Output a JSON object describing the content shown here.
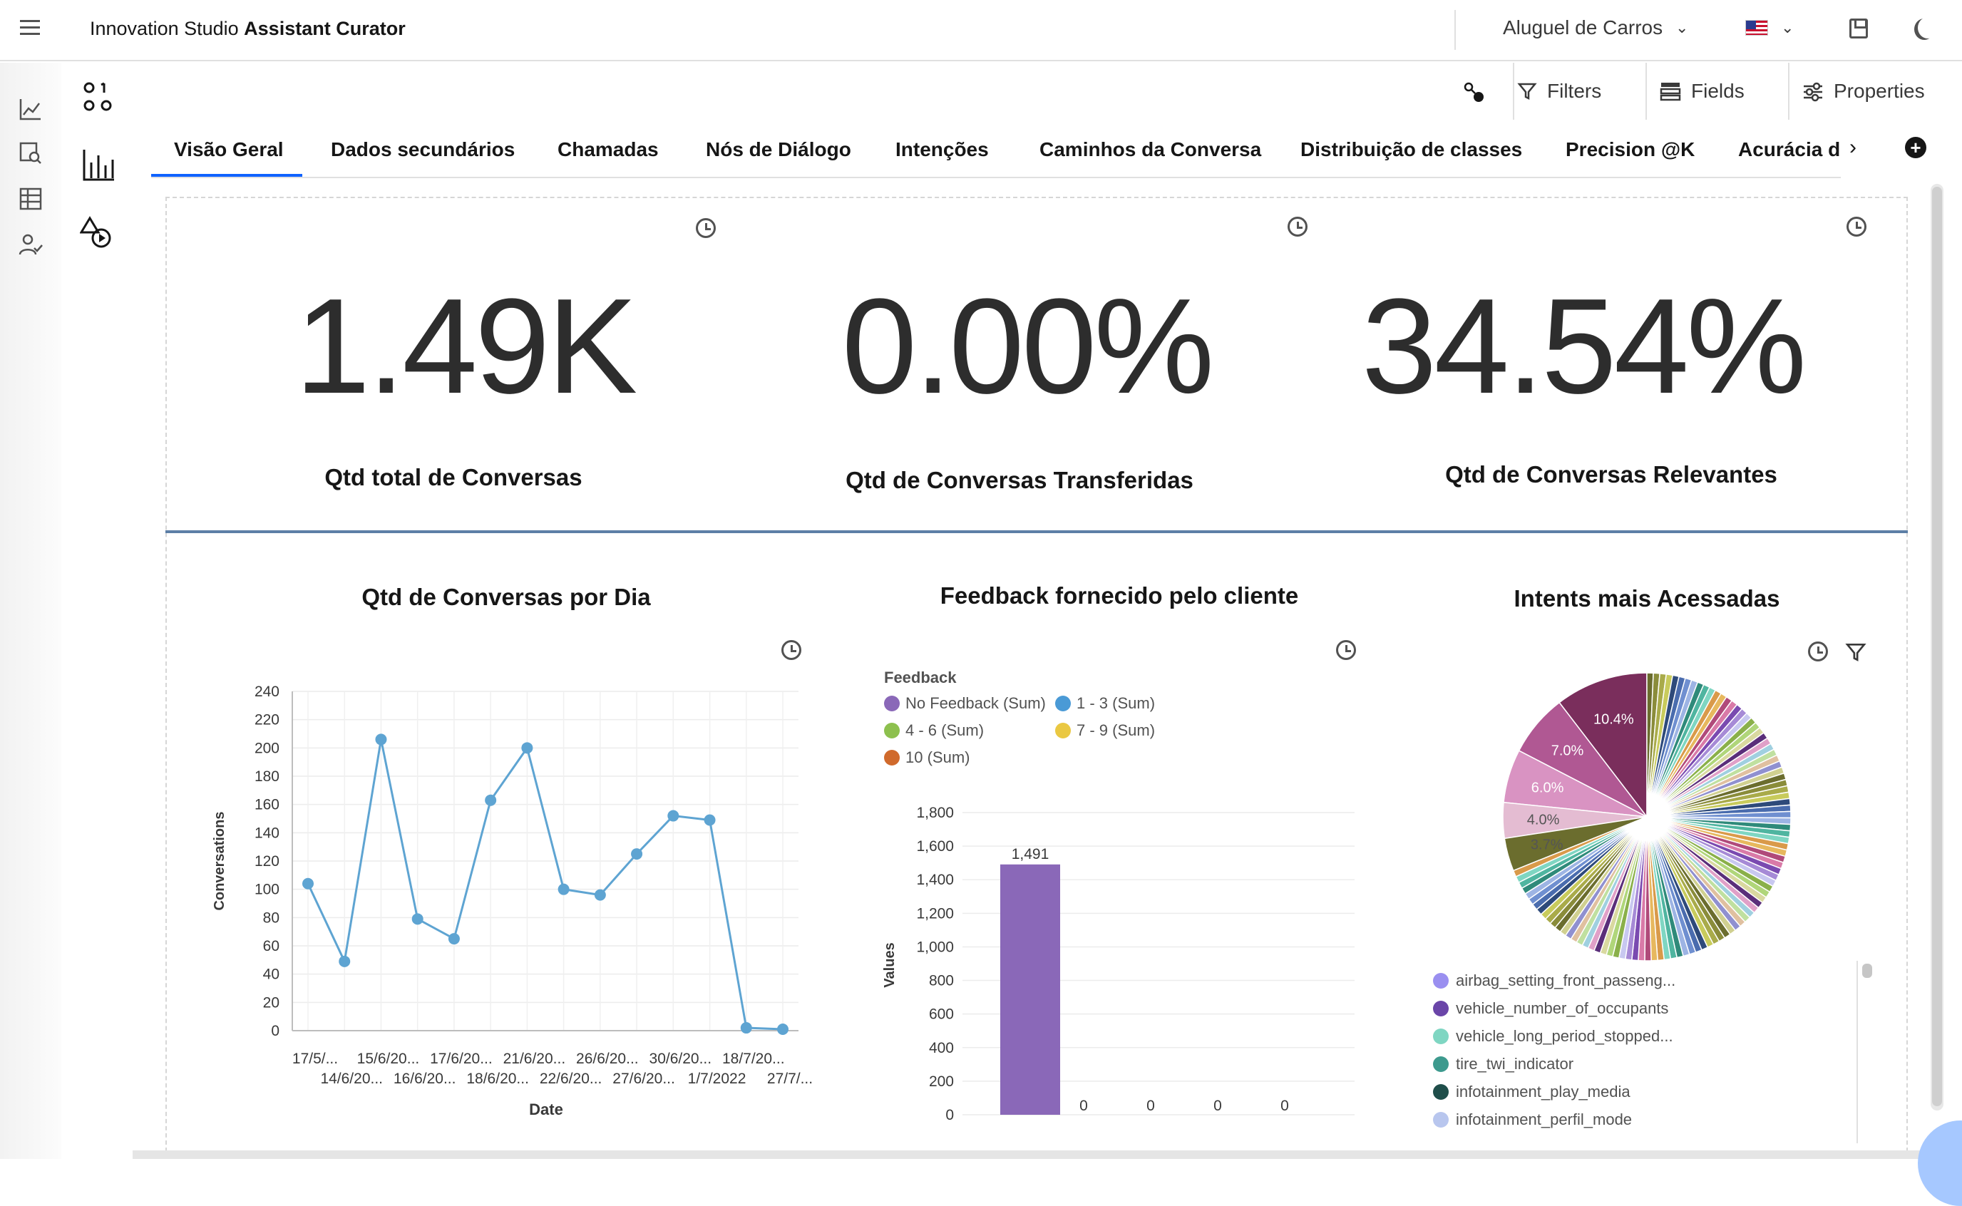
{
  "header": {
    "brand_prefix": "Innovation Studio ",
    "brand_bold": "Assistant Curator",
    "project": "Aluguel de Carros"
  },
  "toolbar": {
    "filters": "Filters",
    "fields": "Fields",
    "properties": "Properties"
  },
  "tabs": [
    {
      "label": "Visão Geral"
    },
    {
      "label": "Dados secundários"
    },
    {
      "label": "Chamadas"
    },
    {
      "label": "Nós de Diálogo"
    },
    {
      "label": "Intenções"
    },
    {
      "label": "Caminhos da Conversa"
    },
    {
      "label": "Distribuição de classes"
    },
    {
      "label": "Precision @K"
    },
    {
      "label": "Acurácia da"
    }
  ],
  "kpis": [
    {
      "value": "1.49K",
      "label": "Qtd total de Conversas"
    },
    {
      "value": "0.00%",
      "label": "Qtd de Conversas Transferidas"
    },
    {
      "value": "34.54%",
      "label": "Qtd de Conversas Relevantes"
    }
  ],
  "colors": {
    "accent": "#0f62fe",
    "line": "#5ea4d2",
    "bar": "#8a68b8",
    "separator": "#5d7fa6"
  },
  "chart_data": [
    {
      "type": "line",
      "title": "Qtd de Conversas por Dia",
      "xlabel": "Date",
      "ylabel": "Conversations",
      "ylim": [
        0,
        240
      ],
      "yticks": [
        "0",
        "20",
        "40",
        "60",
        "80",
        "100",
        "120",
        "140",
        "160",
        "180",
        "200",
        "220",
        "240"
      ],
      "xtick_top": [
        "17/5/...",
        "15/6/20...",
        "17/6/20...",
        "21/6/20...",
        "26/6/20...",
        "30/6/20...",
        "18/7/20..."
      ],
      "xtick_bottom": [
        "14/6/20...",
        "16/6/20...",
        "18/6/20...",
        "22/6/20...",
        "27/6/20...",
        "1/7/2022",
        "27/7/..."
      ],
      "values": [
        104,
        49,
        206,
        79,
        65,
        163,
        200,
        100,
        96,
        125,
        152,
        149,
        2,
        1
      ],
      "grid": true
    },
    {
      "type": "bar",
      "title": "Feedback fornecido pelo cliente",
      "legend_title": "Feedback",
      "legend": [
        {
          "name": "No Feedback (Sum)",
          "color": "#8a68b8"
        },
        {
          "name": "1 - 3 (Sum)",
          "color": "#4a9ad6"
        },
        {
          "name": "4 - 6 (Sum)",
          "color": "#8dc04e"
        },
        {
          "name": "7 - 9 (Sum)",
          "color": "#eac842"
        },
        {
          "name": "10 (Sum)",
          "color": "#d06a2c"
        }
      ],
      "ylabel": "Values",
      "ylim": [
        0,
        1800
      ],
      "yticks": [
        "0",
        "200",
        "400",
        "600",
        "800",
        "1,000",
        "1,200",
        "1,400",
        "1,600",
        "1,800"
      ],
      "values": [
        1491,
        0,
        0,
        0,
        0
      ],
      "data_labels": [
        "1,491",
        "0",
        "0",
        "0",
        "0"
      ],
      "grid": true
    },
    {
      "type": "pie",
      "title": "Intents mais Acessadas",
      "slice_labels": [
        "10.4%",
        "7.0%",
        "6.0%",
        "4.0%",
        "3.7%"
      ],
      "values": [
        10.4,
        7.0,
        6.0,
        4.0,
        3.7
      ],
      "slice_colors": [
        "#7a2e5c",
        "#b05893",
        "#d993c2",
        "#e4bcd2",
        "#6b6d2e"
      ],
      "legend": [
        {
          "name": "airbag_setting_front_passeng...",
          "color": "#9a8ff0"
        },
        {
          "name": "vehicle_number_of_occupants",
          "color": "#6a45a8"
        },
        {
          "name": "vehicle_long_period_stopped...",
          "color": "#7fd6c2"
        },
        {
          "name": "tire_twi_indicator",
          "color": "#3d9a8e"
        },
        {
          "name": "infotainment_play_media",
          "color": "#1f4e4a"
        },
        {
          "name": "infotainment_perfil_mode",
          "color": "#b8c6ee"
        }
      ]
    }
  ]
}
